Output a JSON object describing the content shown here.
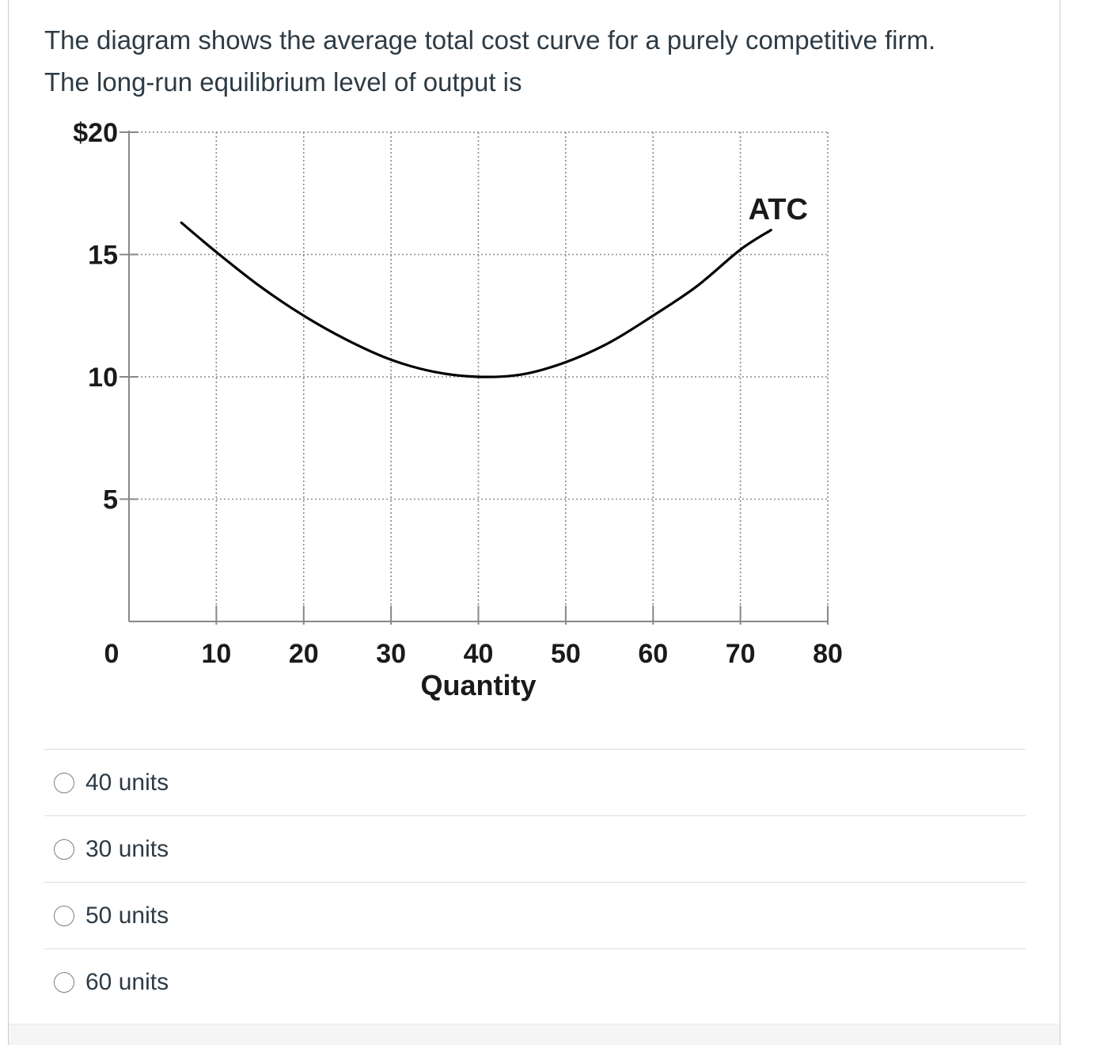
{
  "question": {
    "line1": "The diagram shows the average total cost curve for a purely competitive firm.",
    "line2": "The long-run equilibrium level of output is"
  },
  "chart_data": {
    "type": "line",
    "xlabel": "Quantity",
    "ylabel": "",
    "xlim": [
      0,
      80
    ],
    "ylim": [
      0,
      20
    ],
    "x_ticks": [
      "10",
      "20",
      "30",
      "40",
      "50",
      "60",
      "70",
      "80"
    ],
    "x_zero_label": "0",
    "y_ticks": [
      "5",
      "10",
      "15",
      "$20"
    ],
    "grid": true,
    "series": [
      {
        "name": "ATC",
        "x": [
          6,
          10,
          15,
          20,
          25,
          30,
          35,
          40,
          45,
          50,
          55,
          60,
          65,
          70,
          73.5
        ],
        "y": [
          16.3,
          15.1,
          13.7,
          12.5,
          11.5,
          10.7,
          10.2,
          10.0,
          10.1,
          10.6,
          11.4,
          12.5,
          13.7,
          15.2,
          16.0
        ]
      }
    ],
    "annotations": [
      "ATC"
    ],
    "colors": {
      "curve": "#000000",
      "grid": "#8a8a8a",
      "axis": "#888888"
    }
  },
  "answers": [
    {
      "label": "40 units"
    },
    {
      "label": "30 units"
    },
    {
      "label": "50 units"
    },
    {
      "label": "60 units"
    }
  ]
}
